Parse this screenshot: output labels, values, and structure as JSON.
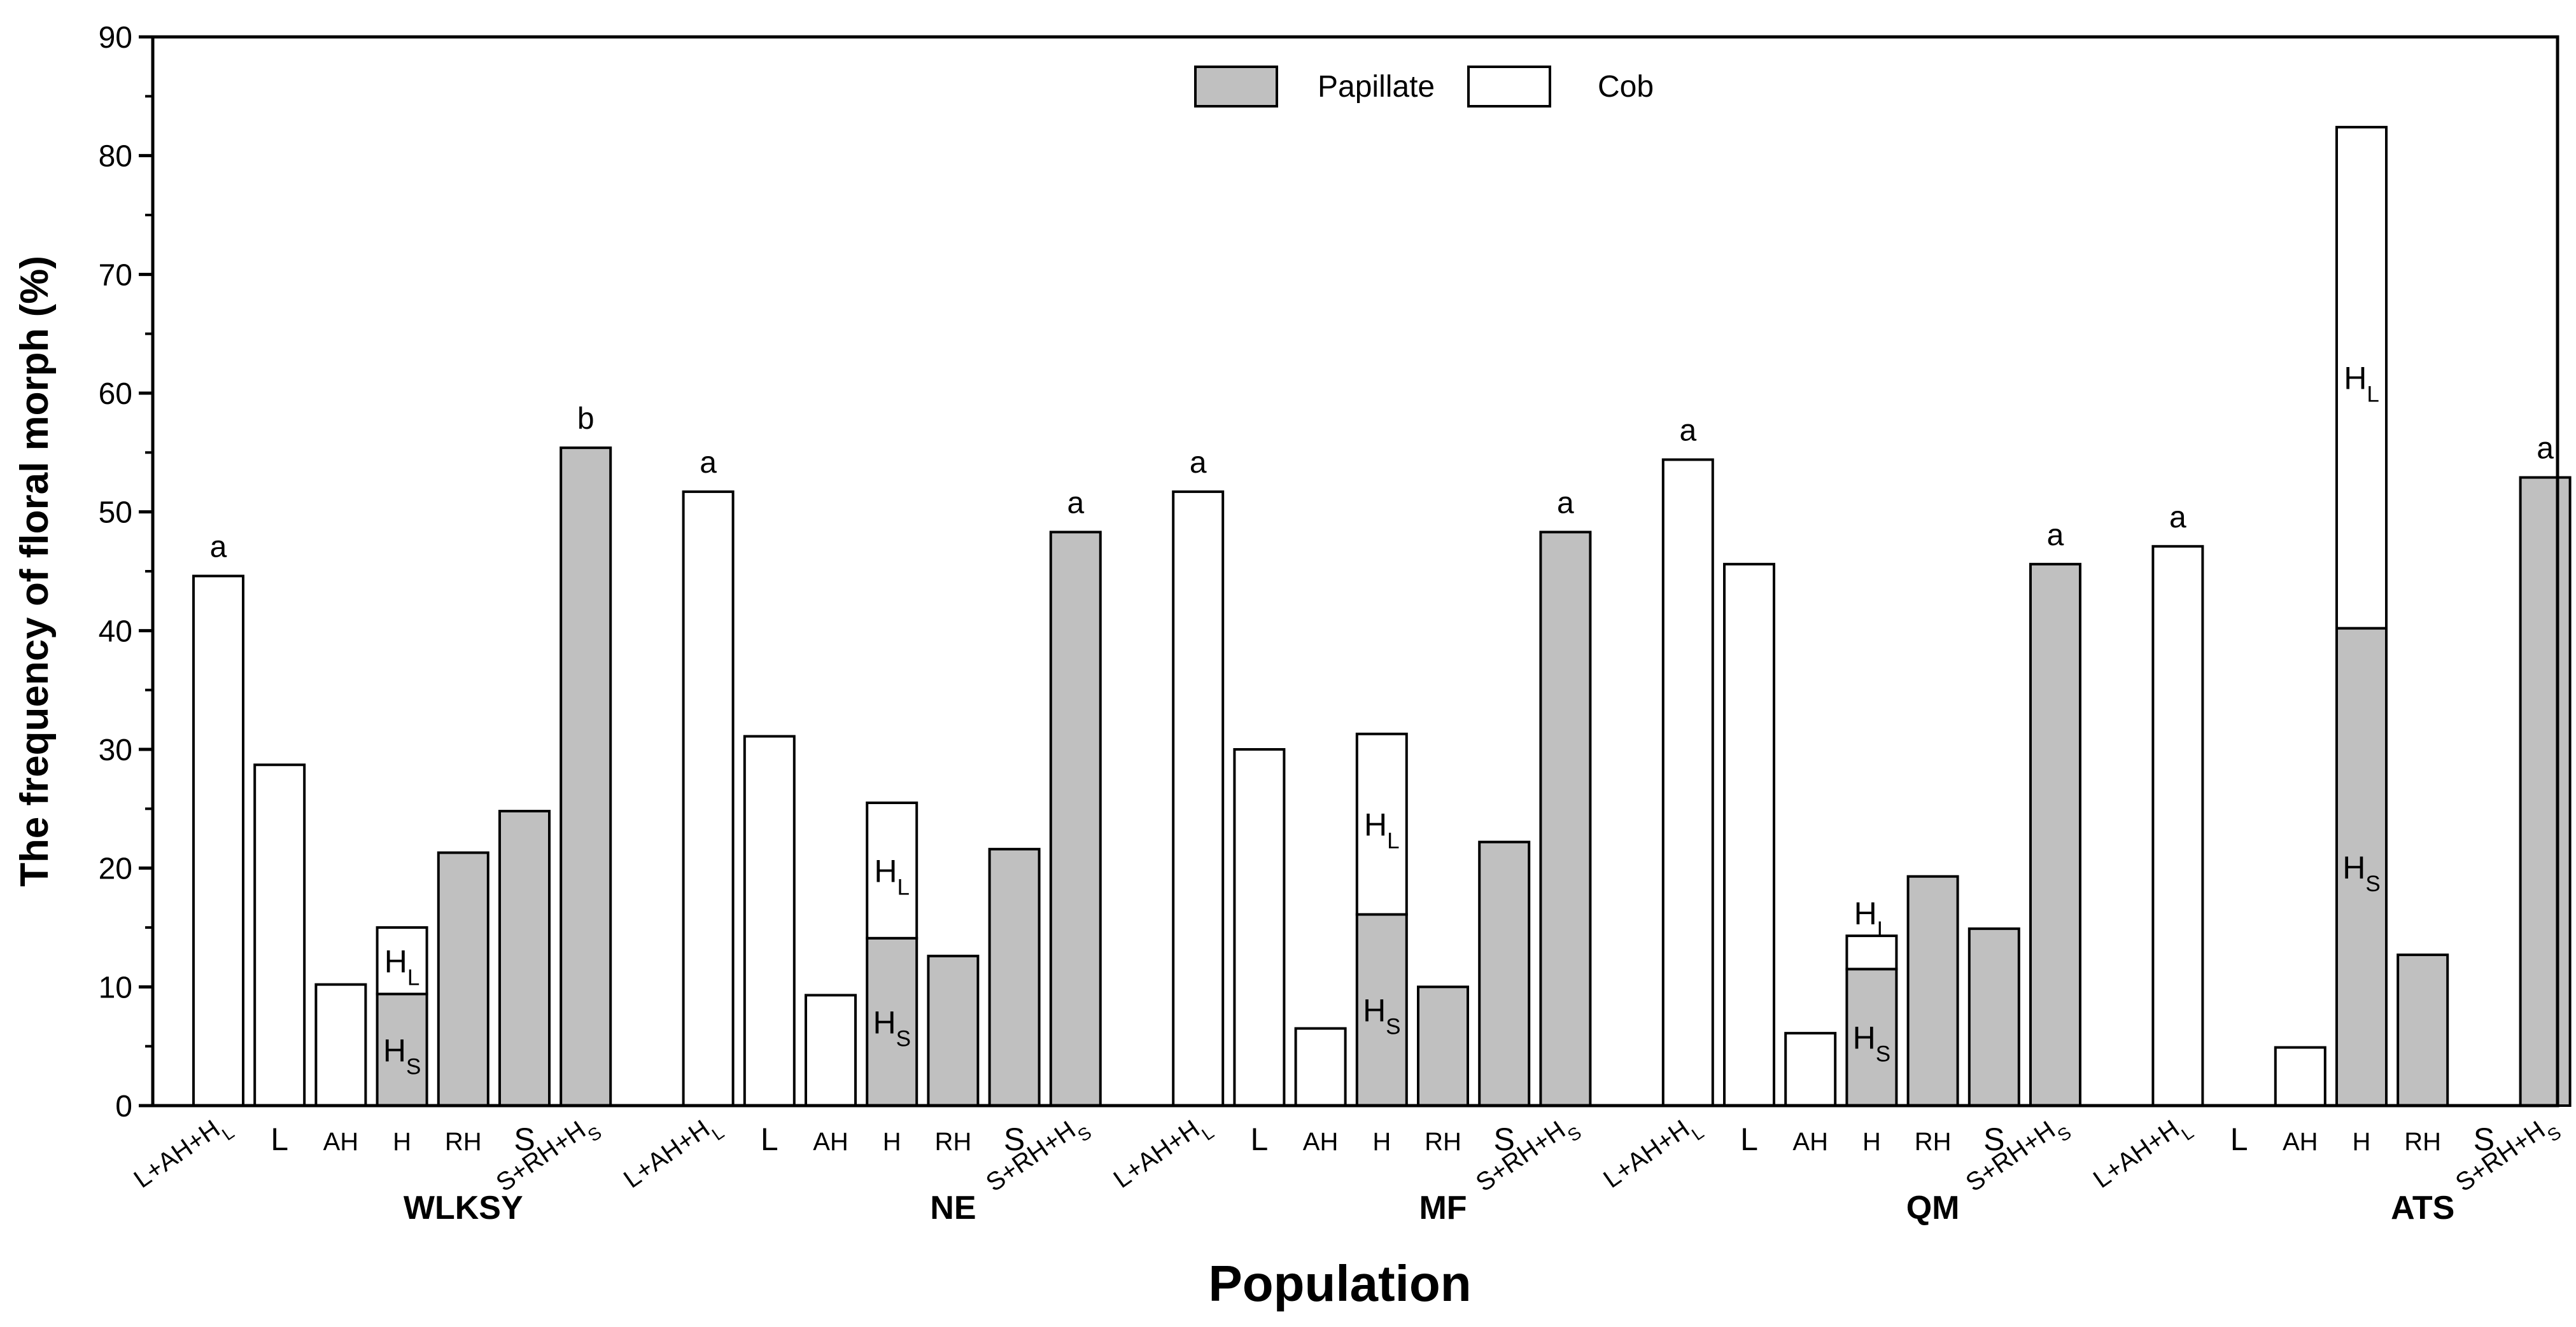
{
  "chart_data": {
    "type": "bar",
    "ylabel": "The frequency of floral morph (%)",
    "xlabel": "Population",
    "ylim": [
      0,
      90
    ],
    "yticks": [
      0,
      10,
      20,
      30,
      40,
      50,
      60,
      70,
      80,
      90
    ],
    "colors": {
      "Papillate": "#c0c0c0",
      "Cob": "#ffffff",
      "stroke": "#000000"
    },
    "legend": {
      "position": "top-center",
      "entries": [
        {
          "name": "Papillate",
          "color": "#c0c0c0"
        },
        {
          "name": "Cob",
          "color": "#ffffff"
        }
      ]
    },
    "groups": [
      {
        "name": "WLKSY",
        "bars": [
          {
            "category": "L+AH+H",
            "category_sub": "L",
            "segments": [
              {
                "type": "Cob",
                "value": 44.6
              }
            ],
            "sig": "a"
          },
          {
            "category": "L",
            "segments": [
              {
                "type": "Cob",
                "value": 28.7
              }
            ]
          },
          {
            "category": "AH",
            "segments": [
              {
                "type": "Cob",
                "value": 10.2
              }
            ]
          },
          {
            "category": "H",
            "segments": [
              {
                "type": "Papillate",
                "value": 9.4,
                "label": "H",
                "label_sub": "S"
              },
              {
                "type": "Cob",
                "value": 5.6,
                "label": "H",
                "label_sub": "L"
              }
            ]
          },
          {
            "category": "RH",
            "segments": [
              {
                "type": "Papillate",
                "value": 21.3
              }
            ]
          },
          {
            "category": "S",
            "segments": [
              {
                "type": "Papillate",
                "value": 24.8
              }
            ]
          },
          {
            "category": "S+RH+H",
            "category_sub": "S",
            "segments": [
              {
                "type": "Papillate",
                "value": 55.4
              }
            ],
            "sig": "b"
          }
        ]
      },
      {
        "name": "NE",
        "bars": [
          {
            "category": "L+AH+H",
            "category_sub": "L",
            "segments": [
              {
                "type": "Cob",
                "value": 51.7
              }
            ],
            "sig": "a"
          },
          {
            "category": "L",
            "segments": [
              {
                "type": "Cob",
                "value": 31.1
              }
            ]
          },
          {
            "category": "AH",
            "segments": [
              {
                "type": "Cob",
                "value": 9.3
              }
            ]
          },
          {
            "category": "H",
            "segments": [
              {
                "type": "Papillate",
                "value": 14.1,
                "label": "H",
                "label_sub": "S"
              },
              {
                "type": "Cob",
                "value": 11.4,
                "label": "H",
                "label_sub": "L"
              }
            ]
          },
          {
            "category": "RH",
            "segments": [
              {
                "type": "Papillate",
                "value": 12.6
              }
            ]
          },
          {
            "category": "S",
            "segments": [
              {
                "type": "Papillate",
                "value": 21.6
              }
            ]
          },
          {
            "category": "S+RH+H",
            "category_sub": "S",
            "segments": [
              {
                "type": "Papillate",
                "value": 48.3
              }
            ],
            "sig": "a"
          }
        ]
      },
      {
        "name": "MF",
        "bars": [
          {
            "category": "L+AH+H",
            "category_sub": "L",
            "segments": [
              {
                "type": "Cob",
                "value": 51.7
              }
            ],
            "sig": "a"
          },
          {
            "category": "L",
            "segments": [
              {
                "type": "Cob",
                "value": 30.0
              }
            ]
          },
          {
            "category": "AH",
            "segments": [
              {
                "type": "Cob",
                "value": 6.5
              }
            ]
          },
          {
            "category": "H",
            "segments": [
              {
                "type": "Papillate",
                "value": 16.1,
                "label": "H",
                "label_sub": "S"
              },
              {
                "type": "Cob",
                "value": 15.2,
                "label": "H",
                "label_sub": "L"
              }
            ]
          },
          {
            "category": "RH",
            "segments": [
              {
                "type": "Papillate",
                "value": 10.0
              }
            ]
          },
          {
            "category": "S",
            "segments": [
              {
                "type": "Papillate",
                "value": 22.2
              }
            ]
          },
          {
            "category": "S+RH+H",
            "category_sub": "S",
            "segments": [
              {
                "type": "Papillate",
                "value": 48.3
              }
            ],
            "sig": "a"
          }
        ]
      },
      {
        "name": "QM",
        "bars": [
          {
            "category": "L+AH+H",
            "category_sub": "L",
            "segments": [
              {
                "type": "Cob",
                "value": 54.4
              }
            ],
            "sig": "a"
          },
          {
            "category": "L",
            "segments": [
              {
                "type": "Cob",
                "value": 45.6
              }
            ]
          },
          {
            "category": "AH",
            "segments": [
              {
                "type": "Cob",
                "value": 6.1
              }
            ]
          },
          {
            "category": "H",
            "segments": [
              {
                "type": "Papillate",
                "value": 11.5,
                "label": "H",
                "label_sub": "S"
              },
              {
                "type": "Cob",
                "value": 2.8,
                "label": "H",
                "label_sub": "L",
                "label_outside": true
              }
            ]
          },
          {
            "category": "RH",
            "segments": [
              {
                "type": "Papillate",
                "value": 19.3
              }
            ]
          },
          {
            "category": "S",
            "segments": [
              {
                "type": "Papillate",
                "value": 14.9
              }
            ]
          },
          {
            "category": "S+RH+H",
            "category_sub": "S",
            "segments": [
              {
                "type": "Papillate",
                "value": 45.6
              }
            ],
            "sig": "a"
          }
        ]
      },
      {
        "name": "ATS",
        "bars": [
          {
            "category": "L+AH+H",
            "category_sub": "L",
            "segments": [
              {
                "type": "Cob",
                "value": 47.1
              }
            ],
            "sig": "a"
          },
          {
            "category": "L",
            "segments": []
          },
          {
            "category": "AH",
            "segments": [
              {
                "type": "Cob",
                "value": 4.9
              }
            ]
          },
          {
            "category": "H",
            "segments": [
              {
                "type": "Papillate",
                "value": 40.2,
                "label": "H",
                "label_sub": "S"
              },
              {
                "type": "Cob",
                "value": 42.2,
                "label": "H",
                "label_sub": "L"
              }
            ]
          },
          {
            "category": "RH",
            "segments": [
              {
                "type": "Papillate",
                "value": 12.7
              }
            ]
          },
          {
            "category": "S",
            "segments": []
          },
          {
            "category": "S+RH+H",
            "category_sub": "S",
            "segments": [
              {
                "type": "Papillate",
                "value": 52.9
              }
            ],
            "sig": "a"
          }
        ]
      }
    ]
  }
}
